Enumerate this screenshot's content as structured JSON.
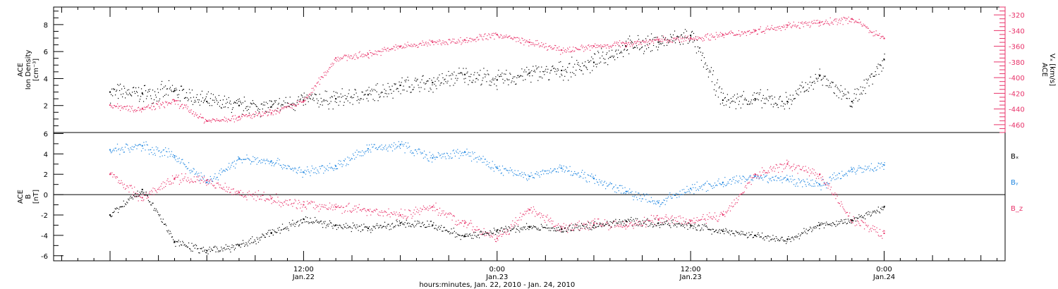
{
  "chart_data": [
    {
      "type": "scatter",
      "panel": "top",
      "ylabel_left": [
        "ACE",
        "Ion Density",
        "[cm⁻³]"
      ],
      "ylabel_right": [
        "ACE",
        "Vₓ [km/s]"
      ],
      "ylim_left": [
        0,
        9.3
      ],
      "ylim_right": [
        -470,
        -310
      ],
      "yticks_left": [
        2,
        4,
        6,
        8
      ],
      "yticks_right": [
        -460,
        -440,
        -420,
        -400,
        -380,
        -360,
        -340,
        -320
      ],
      "right_axis_color": "#e8336a",
      "series": [
        {
          "name": "ACE Ion Density",
          "color": "#000000",
          "axis": "left",
          "x": [
            0,
            2,
            4,
            6,
            8,
            10,
            12,
            14,
            16,
            18,
            20,
            22,
            24,
            26,
            28,
            30,
            32,
            34,
            36,
            38,
            40,
            42,
            44,
            46,
            48
          ],
          "y": [
            3.0,
            2.9,
            3.1,
            2.3,
            2.0,
            1.9,
            2.4,
            2.5,
            2.8,
            3.5,
            3.7,
            4.3,
            3.9,
            4.4,
            4.6,
            5.2,
            6.4,
            6.7,
            7.2,
            2.4,
            2.5,
            2.3,
            4.2,
            2.3,
            5.4
          ]
        },
        {
          "name": "ACE Vx",
          "color": "#e8336a",
          "axis": "right",
          "x": [
            0,
            2,
            4,
            6,
            8,
            10,
            12,
            14,
            16,
            18,
            20,
            22,
            24,
            26,
            28,
            30,
            32,
            34,
            36,
            38,
            40,
            42,
            44,
            46,
            48
          ],
          "y": [
            -435,
            -440,
            -430,
            -455,
            -450,
            -445,
            -430,
            -375,
            -370,
            -360,
            -355,
            -352,
            -345,
            -355,
            -365,
            -360,
            -356,
            -352,
            -350,
            -345,
            -340,
            -333,
            -330,
            -325,
            -350
          ]
        }
      ]
    },
    {
      "type": "scatter",
      "panel": "bottom",
      "ylabel_left": [
        "ACE",
        "B",
        "[nT]"
      ],
      "ylim": [
        -6.5,
        6.1
      ],
      "yticks": [
        -6,
        -4,
        -2,
        0,
        2,
        4,
        6
      ],
      "zero_line": true,
      "legend": [
        "Bₓ",
        "Bᵧ",
        "B_z"
      ],
      "series": [
        {
          "name": "Bₓ",
          "color": "#000000",
          "x": [
            0,
            2,
            4,
            6,
            8,
            10,
            12,
            14,
            16,
            18,
            20,
            22,
            24,
            26,
            28,
            30,
            32,
            34,
            36,
            38,
            40,
            42,
            44,
            46,
            48
          ],
          "y": [
            -2.0,
            0.5,
            -4.6,
            -5.5,
            -5.0,
            -3.8,
            -2.4,
            -3.0,
            -3.3,
            -2.8,
            -3.0,
            -4.1,
            -3.5,
            -3.2,
            -3.4,
            -3.0,
            -2.6,
            -2.8,
            -3.0,
            -3.6,
            -4.0,
            -4.4,
            -3.0,
            -2.5,
            -1.2
          ]
        },
        {
          "name": "Bᵧ",
          "color": "#1f86e0",
          "x": [
            0,
            2,
            4,
            6,
            8,
            10,
            12,
            14,
            16,
            18,
            20,
            22,
            24,
            26,
            28,
            30,
            32,
            34,
            36,
            38,
            40,
            42,
            44,
            46,
            48
          ],
          "y": [
            4.4,
            4.8,
            3.8,
            1.2,
            3.5,
            3.3,
            2.2,
            2.8,
            4.5,
            4.9,
            3.6,
            4.2,
            2.6,
            1.8,
            2.6,
            1.6,
            0.3,
            -0.8,
            0.6,
            1.2,
            1.8,
            1.5,
            1.0,
            2.5,
            2.9
          ]
        },
        {
          "name": "B_z",
          "color": "#e8336a",
          "x": [
            0,
            2,
            4,
            6,
            8,
            10,
            12,
            14,
            16,
            18,
            20,
            22,
            24,
            26,
            28,
            30,
            32,
            34,
            36,
            38,
            40,
            42,
            44,
            46,
            48
          ],
          "y": [
            2.0,
            -0.3,
            1.6,
            1.4,
            0.2,
            -0.4,
            -1.0,
            -1.2,
            -1.5,
            -2.0,
            -1.2,
            -2.8,
            -4.3,
            -1.5,
            -3.3,
            -2.8,
            -3.0,
            -2.4,
            -2.6,
            -2.0,
            2.0,
            3.0,
            2.0,
            -2.5,
            -3.8
          ]
        }
      ]
    },
    {
      "type": "axis",
      "xlabel": "hours:minutes, Jan. 22, 2010 - Jan. 24, 2010",
      "xlim": [
        -3.5,
        55.5
      ],
      "xticks": [
        {
          "x": 12,
          "time": "12:00",
          "date": "Jan.22"
        },
        {
          "x": 24,
          "time": "0:00",
          "date": "Jan.23"
        },
        {
          "x": 36,
          "time": "12:00",
          "date": "Jan.23"
        },
        {
          "x": 48,
          "time": "0:00",
          "date": "Jan.24"
        }
      ]
    }
  ]
}
